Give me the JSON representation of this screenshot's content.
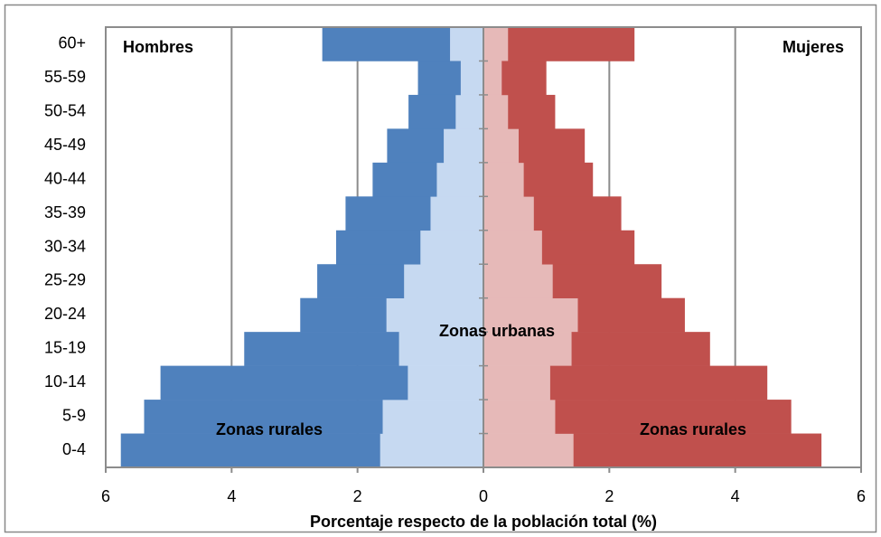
{
  "chart_data": {
    "type": "pyramid",
    "x_label": "Porcentaje respecto de la población total (%)",
    "categories": [
      "60+",
      "55-59",
      "50-54",
      "45-49",
      "40-44",
      "35-39",
      "30-34",
      "25-29",
      "20-24",
      "15-19",
      "10-14",
      "5-9",
      "0-4"
    ],
    "series": [
      {
        "side": "left",
        "color": "#c6d9f1",
        "values": [
          0.53,
          0.36,
          0.44,
          0.63,
          0.74,
          0.84,
          1.0,
          1.26,
          1.54,
          1.34,
          1.2,
          1.6,
          1.64
        ]
      },
      {
        "side": "left",
        "color": "#4f81bd",
        "values": [
          2.03,
          0.68,
          0.75,
          0.9,
          1.02,
          1.35,
          1.34,
          1.38,
          1.37,
          2.46,
          3.93,
          3.79,
          4.12
        ]
      },
      {
        "side": "right",
        "color": "#e6b9b8",
        "values": [
          0.39,
          0.29,
          0.39,
          0.56,
          0.64,
          0.8,
          0.93,
          1.1,
          1.5,
          1.4,
          1.06,
          1.14,
          1.43
        ]
      },
      {
        "side": "right",
        "color": "#c0504d",
        "values": [
          2.01,
          0.71,
          0.75,
          1.05,
          1.1,
          1.39,
          1.47,
          1.73,
          1.7,
          2.2,
          3.45,
          3.75,
          3.94
        ]
      }
    ],
    "xlim": [
      -6,
      6
    ],
    "xticks": [
      {
        "value": -6,
        "label": "6"
      },
      {
        "value": -4,
        "label": "4"
      },
      {
        "value": -2,
        "label": "2"
      },
      0,
      2,
      4,
      6
    ],
    "grid": true,
    "annotations": [
      "Hombres",
      "Mujeres",
      "Zonas urbanas",
      "Zonas rurales",
      "Zonas rurales"
    ]
  }
}
